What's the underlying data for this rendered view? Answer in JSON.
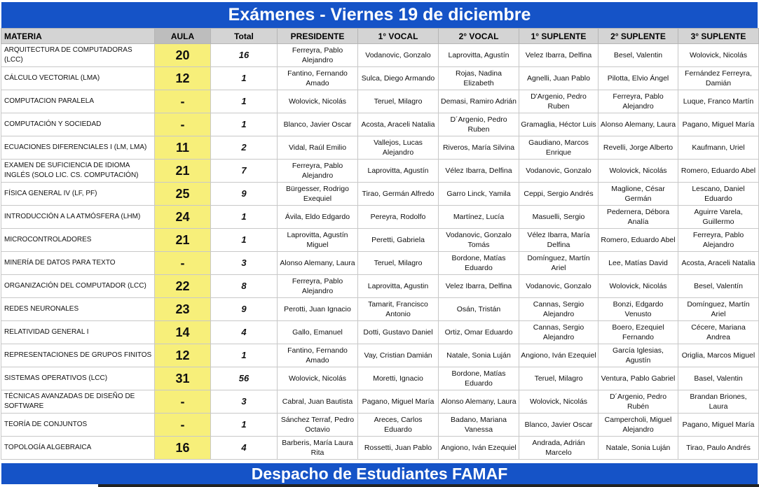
{
  "title": "Exámenes - Viernes 19 de diciembre",
  "footer": "Despacho de Estudiantes FAMAF",
  "colors": {
    "banner": "#1553c7",
    "aula_highlight": "#f7ef7a",
    "header": "#d4d4d4"
  },
  "columns": [
    "MATERIA",
    "AULA",
    "Total",
    "PRESIDENTE",
    "1° VOCAL",
    "2° VOCAL",
    "1° SUPLENTE",
    "2° SUPLENTE",
    "3° SUPLENTE"
  ],
  "rows": [
    [
      "ARQUITECTURA DE COMPUTADORAS (LCC)",
      "20",
      "16",
      "Ferreyra, Pablo Alejandro",
      "Vodanovic, Gonzalo",
      "Laprovitta, Agustín",
      "Velez Ibarra, Delfina",
      "Besel, Valentin",
      "Wolovick, Nicolás"
    ],
    [
      "CÁLCULO VECTORIAL (LMA)",
      "12",
      "1",
      "Fantino, Fernando Amado",
      "Sulca, Diego Armando",
      "Rojas, Nadina Elizabeth",
      "Agnelli, Juan Pablo",
      "Pilotta, Elvio Ángel",
      "Fernández Ferreyra, Damián"
    ],
    [
      "COMPUTACION PARALELA",
      "-",
      "1",
      "Wolovick, Nicolás",
      "Teruel, Milagro",
      "Demasi, Ramiro Adrián",
      "D'Argenio, Pedro Ruben",
      "Ferreyra, Pablo Alejandro",
      "Luque, Franco Martín"
    ],
    [
      "COMPUTACIÓN Y SOCIEDAD",
      "-",
      "1",
      "Blanco, Javier Oscar",
      "Acosta, Araceli Natalia",
      "D´Argenio, Pedro Ruben",
      "Gramaglia, Héctor Luis",
      "Alonso Alemany, Laura",
      "Pagano, Miguel María"
    ],
    [
      "ECUACIONES DIFERENCIALES I (LM, LMA)",
      "11",
      "2",
      "Vidal, Raúl Emilio",
      "Vallejos, Lucas Alejandro",
      "Riveros, María Silvina",
      "Gaudiano, Marcos Enrique",
      "Revelli, Jorge Alberto",
      "Kaufmann, Uriel"
    ],
    [
      "EXAMEN DE SUFICIENCIA DE IDIOMA INGLÉS (SOLO LIC. CS. COMPUTACIÓN)",
      "21",
      "7",
      "Ferreyra, Pablo Alejandro",
      "Laprovitta, Agustín",
      "Vélez Ibarra, Delfina",
      "Vodanovic, Gonzalo",
      "Wolovick, Nicolás",
      "Romero, Eduardo Abel"
    ],
    [
      "FÍSICA GENERAL IV (LF, PF)",
      "25",
      "9",
      "Bürgesser, Rodrigo Exequiel",
      "Tirao, Germán Alfredo",
      "Garro Linck, Yamila",
      "Ceppi, Sergio Andrés",
      "Maglione, César Germán",
      "Lescano, Daniel Eduardo"
    ],
    [
      "INTRODUCCIÓN A LA ATMÓSFERA (LHM)",
      "24",
      "1",
      "Ávila, Eldo Edgardo",
      "Pereyra, Rodolfo",
      "Martínez, Lucía",
      "Masuelli, Sergio",
      "Pedernera, Débora Analía",
      "Aguirre Varela, Guillermo"
    ],
    [
      "MICROCONTROLADORES",
      "21",
      "1",
      "Laprovitta, Agustín Miguel",
      "Peretti, Gabriela",
      "Vodanovic, Gonzalo Tomás",
      "Vélez Ibarra, María Delfina",
      "Romero, Eduardo Abel",
      "Ferreyra, Pablo Alejandro"
    ],
    [
      "MINERÍA DE DATOS PARA TEXTO",
      "-",
      "3",
      "Alonso Alemany, Laura",
      "Teruel, Milagro",
      "Bordone, Matías Eduardo",
      "Domínguez, Martín Ariel",
      "Lee, Matías David",
      "Acosta, Araceli Natalia"
    ],
    [
      "ORGANIZACIÓN DEL COMPUTADOR (LCC)",
      "22",
      "8",
      "Ferreyra, Pablo Alejandro",
      "Laprovitta, Agustin",
      "Velez Ibarra, Delfina",
      "Vodanovic, Gonzalo",
      "Wolovick, Nicolás",
      "Besel, Valentín"
    ],
    [
      "REDES NEURONALES",
      "23",
      "9",
      "Perotti, Juan Ignacio",
      "Tamarit, Francisco Antonio",
      "Osán, Tristán",
      "Cannas, Sergio Alejandro",
      "Bonzi, Edgardo Venusto",
      "Domínguez, Martín Ariel"
    ],
    [
      "RELATIVIDAD GENERAL I",
      "14",
      "4",
      "Gallo, Emanuel",
      "Dotti, Gustavo Daniel",
      "Ortiz, Omar Eduardo",
      "Cannas, Sergio Alejandro",
      "Boero, Ezequiel Fernando",
      "Cécere, Mariana Andrea"
    ],
    [
      "REPRESENTACIONES DE GRUPOS FINITOS",
      "12",
      "1",
      "Fantino, Fernando Amado",
      "Vay, Cristian Damián",
      "Natale, Sonia Luján",
      "Angiono, Iván Ezequiel",
      "García Iglesias, Agustín",
      "Origlia, Marcos Miguel"
    ],
    [
      "SISTEMAS OPERATIVOS (LCC)",
      "31",
      "56",
      "Wolovick, Nicolás",
      "Moretti, Ignacio",
      "Bordone, Matías Eduardo",
      "Teruel, Milagro",
      "Ventura, Pablo Gabriel",
      "Basel, Valentin"
    ],
    [
      "TÉCNICAS AVANZADAS DE DISEÑO DE SOFTWARE",
      "-",
      "3",
      "Cabral, Juan Bautista",
      "Pagano, Miguel María",
      "Alonso Alemany, Laura",
      "Wolovick, Nicolás",
      "D´Argenio, Pedro Rubén",
      "Brandan Briones, Laura"
    ],
    [
      "TEORÍA DE CONJUNTOS",
      "-",
      "1",
      "Sánchez Terraf, Pedro Octavio",
      "Areces, Carlos Eduardo",
      "Badano, Mariana Vanessa",
      "Blanco, Javier Oscar",
      "Campercholi, Miguel Alejandro",
      "Pagano, Miguel María"
    ],
    [
      "TOPOLOGÍA ALGEBRAICA",
      "16",
      "4",
      "Barberis, María Laura Rita",
      "Rossetti, Juan Pablo",
      "Angiono, Iván Ezequiel",
      "Andrada, Adrián Marcelo",
      "Natale, Sonia Luján",
      "Tirao, Paulo Andrés"
    ]
  ]
}
